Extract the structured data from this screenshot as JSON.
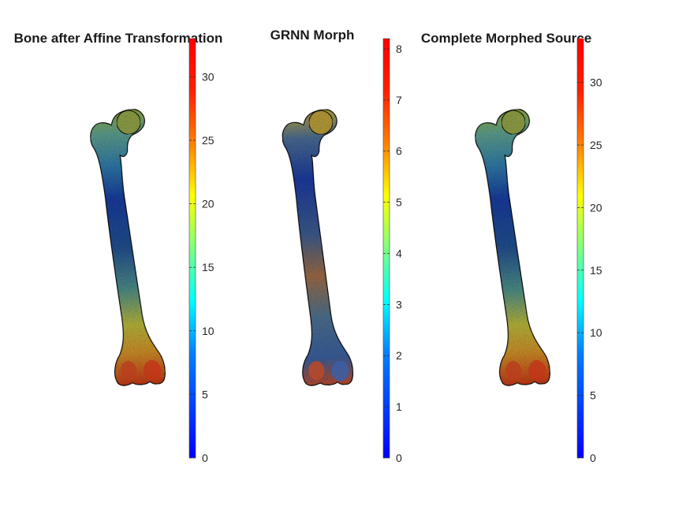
{
  "figure": {
    "panels": [
      {
        "title": "Bone after Affine Transformation",
        "colorbar": {
          "min": 0,
          "max": 33,
          "ticks": [
            "0",
            "5",
            "10",
            "15",
            "20",
            "25",
            "30"
          ],
          "tick_values": [
            0,
            5,
            10,
            15,
            20,
            25,
            30
          ]
        },
        "bone_color_profile": "distal-high"
      },
      {
        "title": "GRNN Morph",
        "colorbar": {
          "min": 0,
          "max": 8.2,
          "ticks": [
            "0",
            "1",
            "2",
            "3",
            "4",
            "5",
            "6",
            "7",
            "8"
          ],
          "tick_values": [
            0,
            1,
            2,
            3,
            4,
            5,
            6,
            7,
            8
          ]
        },
        "bone_color_profile": "mixed"
      },
      {
        "title": "Complete Morphed Source",
        "colorbar": {
          "min": 0,
          "max": 33.5,
          "ticks": [
            "0",
            "5",
            "10",
            "15",
            "20",
            "25",
            "30"
          ],
          "tick_values": [
            0,
            5,
            10,
            15,
            20,
            25,
            30
          ]
        },
        "bone_color_profile": "distal-high"
      }
    ],
    "colormap": "jet",
    "colors": {
      "background": "#ffffff",
      "jet": [
        "#00008f",
        "#0000ff",
        "#0080ff",
        "#00ffff",
        "#80ff80",
        "#ffff00",
        "#ff8000",
        "#ff0000",
        "#800000"
      ]
    }
  }
}
